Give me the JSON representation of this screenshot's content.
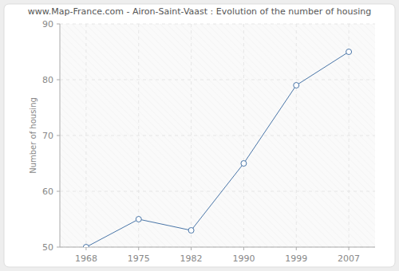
{
  "chart_data": {
    "type": "line",
    "title": "www.Map-France.com - Airon-Saint-Vaast : Evolution of the number of housing",
    "y_label": "Number of housing",
    "categories": [
      "1968",
      "1975",
      "1982",
      "1990",
      "1999",
      "2007"
    ],
    "values": [
      50,
      55,
      53,
      65,
      79,
      85
    ],
    "color": "#4a76a8",
    "marker": "circle",
    "ylim": [
      50,
      90
    ],
    "yticks": [
      50,
      60,
      70,
      80,
      90
    ],
    "grid": true
  }
}
